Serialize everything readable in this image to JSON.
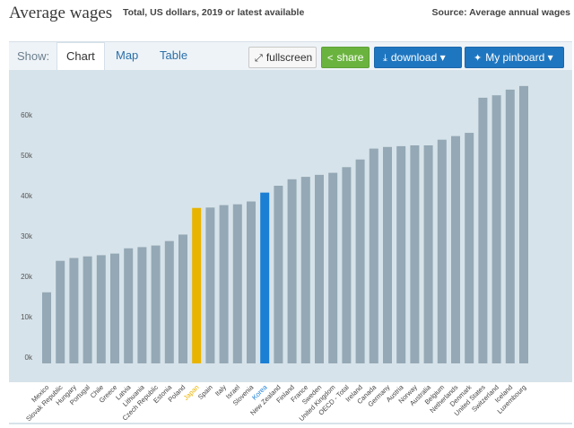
{
  "header": {
    "title": "Average wages",
    "subtitle": "Total, US dollars, 2019 or latest available",
    "source": "Source: Average annual wages"
  },
  "toolbar": {
    "show_label": "Show:",
    "tabs": [
      {
        "label": "Chart",
        "active": true
      },
      {
        "label": "Map",
        "active": false
      },
      {
        "label": "Table",
        "active": false
      }
    ],
    "fullscreen_label": "fullscreen",
    "share_label": "share",
    "download_label": "download ▾",
    "pinboard_label": "My pinboard ▾",
    "icons": [
      "expand-icon",
      "share-icon",
      "download-icon",
      "pin-icon"
    ]
  },
  "colors": {
    "bar_default": "#94a8b5",
    "bar_japan": "#e8b400",
    "bar_korea": "#1b7fd4",
    "plot_background": "#d7e3ea",
    "share_green": "#6bb33f",
    "button_blue": "#1f76c0"
  },
  "chart_data": {
    "type": "bar",
    "title": "Average wages",
    "ylabel": "",
    "ylim": [
      0,
      70000
    ],
    "yticks": [
      0,
      10000,
      20000,
      30000,
      40000,
      50000,
      60000
    ],
    "ytick_labels": [
      "0k",
      "10k",
      "20k",
      "30k",
      "40k",
      "50k",
      "60k"
    ],
    "grid": false,
    "categories": [
      "Mexico",
      "Slovak Republic",
      "Hungary",
      "Portugal",
      "Chile",
      "Greece",
      "Latvia",
      "Lithuania",
      "Czech Republic",
      "Estonia",
      "Poland",
      "Japan",
      "Spain",
      "Italy",
      "Israel",
      "Slovenia",
      "Korea",
      "New Zealand",
      "Finland",
      "France",
      "Sweden",
      "United Kingdom",
      "OECD - Total",
      "Ireland",
      "Canada",
      "Germany",
      "Austria",
      "Norway",
      "Australia",
      "Belgium",
      "Netherlands",
      "Denmark",
      "United States",
      "Switzerland",
      "Iceland",
      "Luxembourg"
    ],
    "values": [
      17600,
      25400,
      26100,
      26500,
      26800,
      27200,
      28500,
      28800,
      29200,
      30300,
      31900,
      38500,
      38600,
      39200,
      39400,
      40100,
      42300,
      44000,
      45600,
      46200,
      46700,
      47200,
      48600,
      50500,
      53200,
      53600,
      53800,
      54000,
      54000,
      55400,
      56300,
      57100,
      65800,
      66400,
      67800,
      68700
    ],
    "highlight": {
      "Japan": "#e8b400",
      "Korea": "#1b7fd4"
    },
    "label_colors": {
      "Japan": "#e8b400",
      "Korea": "#1b7fd4"
    }
  }
}
